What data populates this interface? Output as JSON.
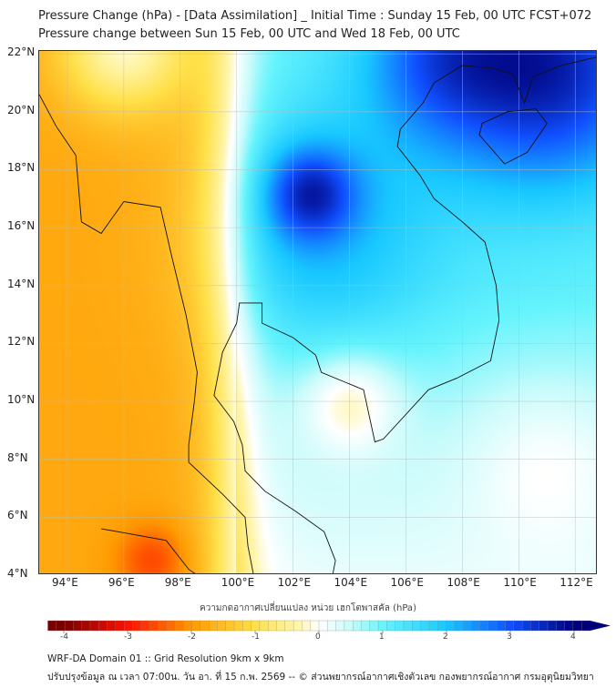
{
  "header": {
    "title_line1": "Pressure Change (hPa) - [Data Assimilation] _ Initial Time : Sunday 15 Feb, 00 UTC FCST+072",
    "title_line2": "Pressure change between Sun 15 Feb, 00 UTC and Wed 18 Feb, 00 UTC"
  },
  "map": {
    "lon_range": [
      93,
      112.8
    ],
    "lat_range": [
      4,
      22.1
    ],
    "lat_labels": [
      {
        "v": 22,
        "t": "22°N"
      },
      {
        "v": 20,
        "t": "20°N"
      },
      {
        "v": 18,
        "t": "18°N"
      },
      {
        "v": 16,
        "t": "16°N"
      },
      {
        "v": 14,
        "t": "14°N"
      },
      {
        "v": 12,
        "t": "12°N"
      },
      {
        "v": 10,
        "t": "10°N"
      },
      {
        "v": 8,
        "t": "8°N"
      },
      {
        "v": 6,
        "t": "6°N"
      },
      {
        "v": 4,
        "t": "4°N"
      }
    ],
    "lon_labels": [
      {
        "v": 94,
        "t": "94°E"
      },
      {
        "v": 96,
        "t": "96°E"
      },
      {
        "v": 98,
        "t": "98°E"
      },
      {
        "v": 100,
        "t": "100°E"
      },
      {
        "v": 102,
        "t": "102°E"
      },
      {
        "v": 104,
        "t": "104°E"
      },
      {
        "v": 106,
        "t": "106°E"
      },
      {
        "v": 108,
        "t": "108°E"
      },
      {
        "v": 110,
        "t": "110°E"
      },
      {
        "v": 112,
        "t": "112°E"
      }
    ]
  },
  "colorbar": {
    "title": "ความกดอากาศเปลี่ยนแปลง หน่วย เฮกโตพาสคัล (hPa)",
    "range": [
      -4,
      4
    ],
    "ticks": [
      "-4",
      "-3",
      "-2",
      "-1",
      "0",
      "1",
      "2",
      "3",
      "4"
    ],
    "colors": {
      "-4": "#7a0000",
      "-3": "#ff1000",
      "-2": "#ff9a00",
      "-1": "#ffe14a",
      "-0.3": "#fff6b0",
      "0": "#ffffff",
      "0.5": "#c8fbfb",
      "1": "#66f4fc",
      "2": "#18c8ff",
      "3": "#1050ff",
      "4": "#00007a"
    }
  },
  "footer": {
    "line1": "WRF-DA Domain 01 :: Grid Resolution 9km x 9km",
    "line2": "ปรับปรุงข้อมูล ณ เวลา 07:00น. วัน อา. ที่ 15 ก.พ. 2569 -- © ส่วนพยากรณ์อากาศเชิงตัวเลข กองพยากรณ์อากาศ กรมอุตุนิยมวิทยา"
  }
}
